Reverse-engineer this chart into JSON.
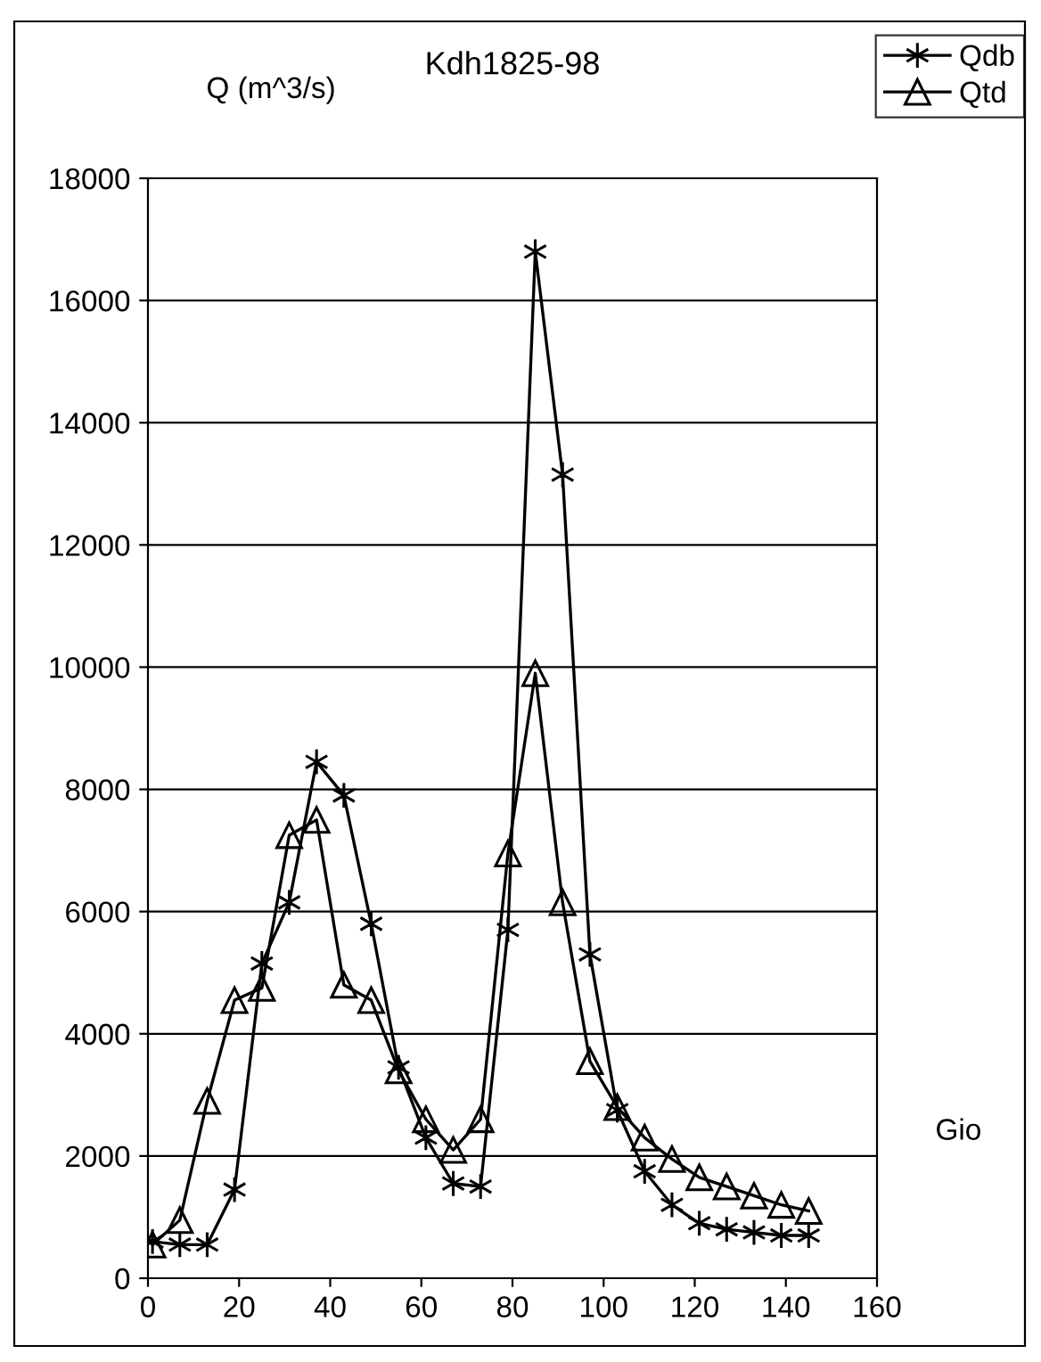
{
  "chart_data": {
    "type": "line",
    "title": "Kdh1825-98",
    "xlabel": "Gio",
    "ylabel": "Q (m^3/s)",
    "x": [
      1,
      7,
      13,
      19,
      25,
      31,
      37,
      43,
      49,
      55,
      61,
      67,
      73,
      79,
      85,
      91,
      97,
      103,
      109,
      115,
      121,
      127,
      133,
      139,
      145
    ],
    "series": [
      {
        "name": "Qdb",
        "color": "#000000",
        "marker": "cross",
        "values": [
          600,
          550,
          550,
          1450,
          5150,
          6150,
          8450,
          7900,
          5800,
          3450,
          2300,
          1550,
          1500,
          5700,
          16800,
          13150,
          5300,
          2750,
          1750,
          1200,
          900,
          800,
          750,
          700,
          700
        ]
      },
      {
        "name": "Qtd",
        "color": "#000000",
        "marker": "triangle",
        "values": [
          550,
          950,
          2900,
          4550,
          4750,
          7250,
          7500,
          4800,
          4550,
          3400,
          2600,
          2100,
          2600,
          6950,
          9900,
          6150,
          3550,
          2800,
          2300,
          1950,
          1650,
          1500,
          1350,
          1200,
          1100
        ]
      }
    ],
    "xlim": [
      0,
      160
    ],
    "xticks": [
      0,
      20,
      40,
      60,
      80,
      100,
      120,
      140,
      160
    ],
    "ylim": [
      0,
      18000
    ],
    "yticks": [
      0,
      2000,
      4000,
      6000,
      8000,
      10000,
      12000,
      14000,
      16000,
      18000
    ],
    "grid": "y",
    "legend": "top right",
    "line_style": "solid"
  }
}
